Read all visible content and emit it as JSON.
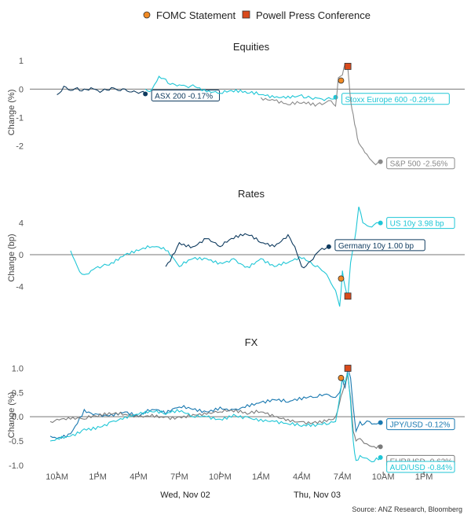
{
  "legend": {
    "fomc": {
      "label": "FOMC Statement",
      "color": "#f08a24"
    },
    "powell": {
      "label": "Powell Press Conference",
      "color": "#d94a1c"
    }
  },
  "source": "Source: ANZ Research, Bloomberg",
  "x_axis": {
    "ticks": [
      "10AM",
      "1PM",
      "4PM",
      "7PM",
      "10PM",
      "1AM",
      "4AM",
      "7AM",
      "10AM",
      "1PM"
    ],
    "dates": [
      "Wed, Nov 02",
      "Thu, Nov 03"
    ]
  },
  "chart_data": [
    {
      "type": "line",
      "title": "Equities",
      "ylabel": "Change (%)",
      "ylim": [
        -2.9,
        1.2
      ],
      "yticks": [
        "1",
        "0",
        "-1",
        "-2"
      ],
      "yvals": [
        1,
        0,
        -1,
        -2
      ],
      "series": [
        {
          "name": "ASX 200",
          "label": "ASX 200 -0.17%",
          "color": "#0f3b5f",
          "x": [
            0,
            0.5,
            1,
            1.5,
            2,
            2.5,
            3,
            3.5,
            4,
            4.5,
            5,
            5.5,
            6,
            6.5
          ],
          "y": [
            -0.2,
            0.1,
            -0.05,
            0.05,
            0.0,
            0.05,
            -0.05,
            0.0,
            0.05,
            -0.05,
            0.0,
            -0.1,
            -0.15,
            -0.17
          ]
        },
        {
          "name": "Stoxx Europe 600",
          "label": "Stoxx Europe 600 -0.29%",
          "color": "#1fc6d6",
          "x": [
            6.5,
            7,
            7.5,
            8,
            8.5,
            9,
            9.5,
            10,
            11,
            12,
            13,
            14,
            15,
            16,
            17,
            18,
            18.5,
            19,
            19.5,
            20,
            20.5
          ],
          "y": [
            0.0,
            0.0,
            0.45,
            0.35,
            0.2,
            0.15,
            0.1,
            0.15,
            -0.1,
            -0.15,
            -0.1,
            -0.15,
            -0.2,
            -0.3,
            -0.25,
            -0.2,
            -0.25,
            -0.3,
            -0.35,
            -0.3,
            -0.29
          ]
        },
        {
          "name": "S&P 500",
          "label": "S&P 500 -2.56%",
          "color": "#8a8a8a",
          "x": [
            15,
            16,
            17,
            18,
            19,
            19.5,
            20,
            20.5,
            20.7,
            21.0,
            21.2,
            21.4,
            21.6,
            21.8,
            22.0,
            22.2,
            22.5,
            22.8,
            23.0,
            23.3,
            23.6,
            23.8
          ],
          "y": [
            -0.3,
            -0.4,
            -0.55,
            -0.5,
            -0.6,
            -0.55,
            -0.4,
            -0.6,
            0.4,
            0.5,
            0.9,
            0.75,
            -0.4,
            -0.9,
            -1.4,
            -1.9,
            -2.1,
            -2.3,
            -2.45,
            -2.6,
            -2.6,
            -2.56
          ]
        }
      ],
      "fomc": {
        "x": 20.9,
        "y": 0.3
      },
      "powell": {
        "x": 21.4,
        "y": 0.8
      }
    },
    {
      "type": "line",
      "title": "Rates",
      "ylabel": "Change (bp)",
      "ylim": [
        -7,
        6.5
      ],
      "yticks": [
        "4",
        "0",
        "-4"
      ],
      "yvals": [
        4,
        0,
        -4
      ],
      "series": [
        {
          "name": "US 10y",
          "label": "US 10y 3.98 bp",
          "color": "#1fc6d6",
          "x": [
            1,
            1.5,
            2,
            2.5,
            3,
            3.5,
            4,
            5,
            6,
            7,
            8,
            9,
            10,
            11,
            12,
            13,
            14,
            15,
            16,
            17,
            18,
            19,
            19.5,
            20,
            20.5,
            20.8,
            21.0,
            21.2,
            21.4,
            21.6,
            21.8,
            22.0,
            22.2,
            22.5,
            23.0,
            23.5,
            23.8
          ],
          "y": [
            0.5,
            -1.5,
            -2.5,
            -2.0,
            -1.5,
            -1.2,
            -1.0,
            0.0,
            0.5,
            1.0,
            0.5,
            -1.5,
            -0.5,
            -0.5,
            -1.0,
            -0.5,
            -1.5,
            -0.5,
            -1.5,
            -1.0,
            -0.5,
            -1.5,
            -2.0,
            -3.0,
            -4.5,
            -6.5,
            -2.0,
            -4.0,
            -5.5,
            -1.0,
            1.0,
            3.0,
            6.0,
            4.0,
            3.5,
            4.0,
            3.98
          ]
        },
        {
          "name": "Germany 10y",
          "label": "Germany 10y 1.00 bp",
          "color": "#0f3b5f",
          "x": [
            8,
            9,
            10,
            11,
            12,
            13,
            14,
            15,
            16,
            17,
            17.5,
            18,
            18.5,
            19,
            19.5,
            20
          ],
          "y": [
            -1.5,
            1.5,
            1.0,
            2.0,
            1.0,
            2.0,
            2.5,
            1.5,
            1.0,
            2.5,
            1.0,
            -1.5,
            -1.0,
            0.0,
            0.8,
            1.0
          ]
        }
      ],
      "fomc": {
        "x": 20.9,
        "y": -3.0
      },
      "powell": {
        "x": 21.4,
        "y": -5.2
      }
    },
    {
      "type": "line",
      "title": "FX",
      "ylabel": "Change (%)",
      "ylim": [
        -1.1,
        1.3
      ],
      "yticks": [
        "1.0",
        "0.5",
        "0.0",
        "-0.5",
        "-1.0"
      ],
      "yvals": [
        1,
        0.5,
        0,
        -0.5,
        -1
      ],
      "series": [
        {
          "name": "JPY/USD",
          "label": "JPY/USD -0.12%",
          "color": "#1878b0",
          "x": [
            -0.5,
            0,
            1,
            2,
            3,
            4,
            5,
            6,
            7,
            8,
            9,
            10,
            11,
            12,
            13,
            14,
            15,
            16,
            17,
            18,
            19,
            20,
            20.5,
            20.8,
            21.0,
            21.2,
            21.4,
            21.6,
            21.8,
            22.0,
            22.3,
            22.6,
            23.0,
            23.5,
            23.8
          ],
          "y": [
            -0.4,
            -0.45,
            -0.35,
            0.15,
            0.05,
            0.05,
            0.1,
            0.0,
            0.15,
            0.05,
            0.2,
            0.15,
            0.1,
            0.2,
            0.15,
            0.25,
            0.3,
            0.35,
            0.3,
            0.35,
            0.4,
            0.45,
            0.4,
            0.5,
            0.8,
            0.6,
            1.0,
            0.8,
            0.2,
            -0.3,
            -0.1,
            -0.15,
            -0.1,
            -0.15,
            -0.12
          ]
        },
        {
          "name": "EUR/USD",
          "label": "EUR/USD -0.62%",
          "color": "#7a7a7a",
          "x": [
            -0.5,
            0,
            1,
            2,
            3,
            4,
            5,
            6,
            7,
            8,
            9,
            10,
            11,
            12,
            13,
            14,
            15,
            16,
            17,
            18,
            19,
            20,
            20.5,
            20.8,
            21.0,
            21.2,
            21.4,
            21.6,
            21.8,
            22.0,
            22.3,
            22.6,
            23.0,
            23.5,
            23.8
          ],
          "y": [
            -0.1,
            -0.05,
            -0.05,
            -0.05,
            0.0,
            0.05,
            0.05,
            0.0,
            0.05,
            0.0,
            0.0,
            0.05,
            0.05,
            0.1,
            0.1,
            0.05,
            0.1,
            0.0,
            -0.05,
            -0.1,
            -0.1,
            -0.05,
            0.0,
            0.3,
            0.5,
            0.7,
            0.9,
            0.4,
            -0.3,
            -0.5,
            -0.45,
            -0.55,
            -0.6,
            -0.65,
            -0.62
          ]
        },
        {
          "name": "AUD/USD",
          "label": "AUD/USD -0.84%",
          "color": "#1fc6d6",
          "x": [
            -0.5,
            0,
            1,
            2,
            3,
            4,
            5,
            6,
            7,
            8,
            9,
            10,
            11,
            12,
            13,
            14,
            15,
            16,
            17,
            18,
            19,
            20,
            20.5,
            20.8,
            21.0,
            21.2,
            21.4,
            21.6,
            21.8,
            22.0,
            22.3,
            22.6,
            23.0,
            23.5,
            23.8
          ],
          "y": [
            -0.5,
            -0.45,
            -0.4,
            -0.25,
            -0.2,
            -0.1,
            0.0,
            0.05,
            0.1,
            0.05,
            0.1,
            0.0,
            0.0,
            -0.05,
            0.05,
            0.0,
            -0.05,
            -0.1,
            -0.15,
            -0.2,
            -0.2,
            -0.15,
            -0.1,
            0.4,
            0.8,
            0.7,
            0.9,
            0.3,
            -0.5,
            -0.9,
            -0.8,
            -0.85,
            -0.9,
            -0.85,
            -0.84
          ]
        }
      ],
      "fomc": {
        "x": 20.9,
        "y": 0.8
      },
      "powell": {
        "x": 21.4,
        "y": 1.0
      }
    }
  ]
}
